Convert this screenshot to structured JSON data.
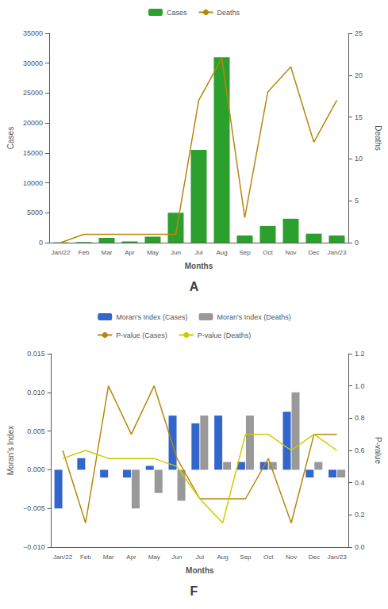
{
  "chart_data": [
    {
      "type": "bar",
      "title": "A",
      "xlabel": "Months",
      "ylabel": "Cases",
      "y2label": "Deaths",
      "categories": [
        "Jan/22",
        "Feb",
        "Mar",
        "Apr",
        "May",
        "Jun",
        "Jul",
        "Aug",
        "Sep",
        "Oct",
        "Nov",
        "Dec",
        "Jan/23"
      ],
      "series": [
        {
          "name": "Cases",
          "type": "bar",
          "color": "#2ca02c",
          "values": [
            50,
            100,
            800,
            200,
            1000,
            5000,
            15500,
            31000,
            1200,
            2800,
            4000,
            1500,
            1200
          ]
        },
        {
          "name": "Deaths",
          "type": "line",
          "axis": "y2",
          "color": "#b8860b",
          "values": [
            0,
            1,
            1,
            1,
            1,
            1,
            17,
            22,
            3,
            18,
            21,
            12,
            17
          ]
        }
      ],
      "ylim": [
        0,
        35000
      ],
      "yticks": [
        0,
        5000,
        10000,
        15000,
        20000,
        25000,
        30000,
        35000
      ],
      "y2lim": [
        0,
        25
      ],
      "y2ticks": [
        0,
        5,
        10,
        15,
        20,
        25
      ],
      "grid": false,
      "legend": "top"
    },
    {
      "type": "bar",
      "title": "F",
      "xlabel": "Months",
      "ylabel": "Moran's Index",
      "y2label": "P-value",
      "categories": [
        "Jan/22",
        "Feb",
        "Mar",
        "Apr",
        "May",
        "Jun",
        "Jul",
        "Aug",
        "Sep",
        "Oct",
        "Nov",
        "Dec",
        "Jan/23"
      ],
      "series": [
        {
          "name": "Moran's Index (Cases)",
          "type": "bar",
          "color": "#3366cc",
          "values": [
            -0.005,
            0.0015,
            -0.001,
            -0.001,
            0.0005,
            0.007,
            0.006,
            0.007,
            0.001,
            0.001,
            0.0075,
            -0.001,
            -0.001
          ]
        },
        {
          "name": "Moran's Index (Deaths)",
          "type": "bar",
          "color": "#999999",
          "values": [
            0,
            0,
            0,
            -0.005,
            -0.003,
            -0.004,
            0.007,
            0.001,
            0.007,
            0.001,
            0.01,
            0.001,
            -0.001
          ]
        },
        {
          "name": "P-value (Cases)",
          "type": "line",
          "axis": "y2",
          "color": "#b8860b",
          "values": [
            0.6,
            0.15,
            1.0,
            0.7,
            1.0,
            0.55,
            0.3,
            0.3,
            0.3,
            0.55,
            0.15,
            0.7,
            0.7
          ]
        },
        {
          "name": "P-value (Deaths)",
          "type": "line",
          "axis": "y2",
          "color": "#cccc00",
          "values": [
            0.55,
            0.6,
            0.55,
            0.55,
            0.55,
            0.5,
            0.3,
            0.15,
            0.7,
            0.7,
            0.6,
            0.7,
            0.6
          ]
        }
      ],
      "ylim": [
        -0.01,
        0.015
      ],
      "yticks": [
        {
          "value": -0.01,
          "label": "−0.010"
        },
        {
          "value": -0.005,
          "label": "−0.005"
        },
        {
          "value": 0,
          "label": "0.000"
        },
        0.005,
        {
          "value": 0.01,
          "label": "0.010"
        },
        0.015
      ],
      "y2lim": [
        0,
        1.2
      ],
      "y2ticks": [
        {
          "value": 0,
          "label": "0.0"
        },
        0.2,
        0.4,
        0.6,
        0.8,
        {
          "value": 1,
          "label": "1.0"
        },
        1.2
      ],
      "grid": false,
      "legend": "top"
    }
  ]
}
